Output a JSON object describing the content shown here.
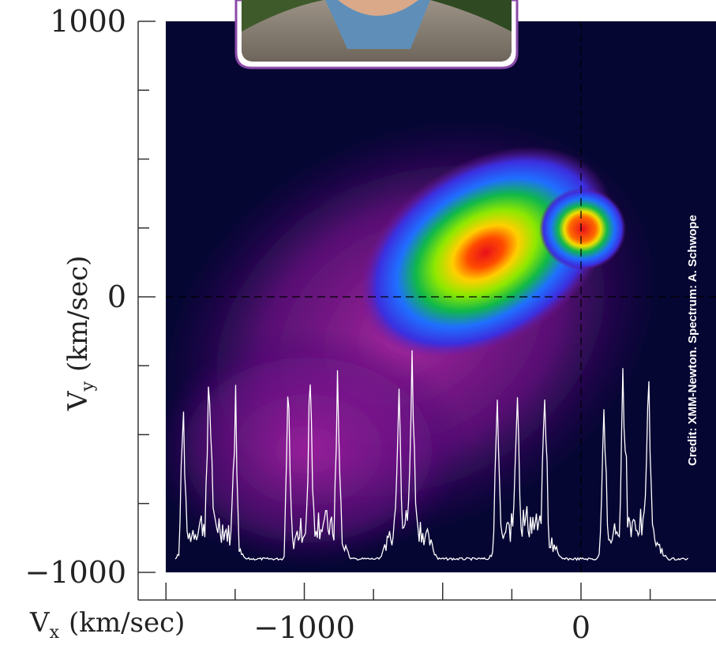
{
  "chart_data": {
    "type": "heatmap",
    "title": "",
    "xlabel": {
      "main": "V",
      "sub": "x",
      "unit": "(km/sec)"
    },
    "ylabel": {
      "main": "V",
      "sub": "y",
      "unit": "(km/sec)"
    },
    "xlim": [
      -1500,
      1000
    ],
    "ylim": [
      -1000,
      1000
    ],
    "x_tick_labels": [
      {
        "value": -1000,
        "label": "−1000"
      },
      {
        "value": 0,
        "label": "0"
      }
    ],
    "y_tick_labels": [
      {
        "value": 1000,
        "label": "1000"
      },
      {
        "value": 0,
        "label": "0"
      },
      {
        "value": -1000,
        "label": "−1000"
      }
    ],
    "x_major_ticks": [
      -1500,
      -1000,
      -500,
      0
    ],
    "x_minor_ticks": [
      -1250,
      -750,
      -250,
      250
    ],
    "y_major_ticks": [
      1000,
      0,
      -1000
    ],
    "y_minor_ticks": [
      750,
      500,
      250,
      -250,
      -500,
      -750
    ],
    "crosshair": {
      "x": 0,
      "y": 0
    },
    "colormap": [
      "#060633",
      "#2a0b5e",
      "#7a148f",
      "#b02aa6",
      "#3b2fe0",
      "#1f6fff",
      "#10b84a",
      "#7ee800",
      "#f0e000",
      "#ff7a00",
      "#e8101c"
    ],
    "intensity_peaks": [
      {
        "vx": -330,
        "vy": 190,
        "level": 1.0
      },
      {
        "vx": 0,
        "vy": 245,
        "level": 0.98
      }
    ],
    "annotation": "Credit: XMM-Newton. Spectrum: A. Schwope",
    "inset_spectrum": {
      "color": "#ffffff",
      "line_groups": 7
    }
  }
}
